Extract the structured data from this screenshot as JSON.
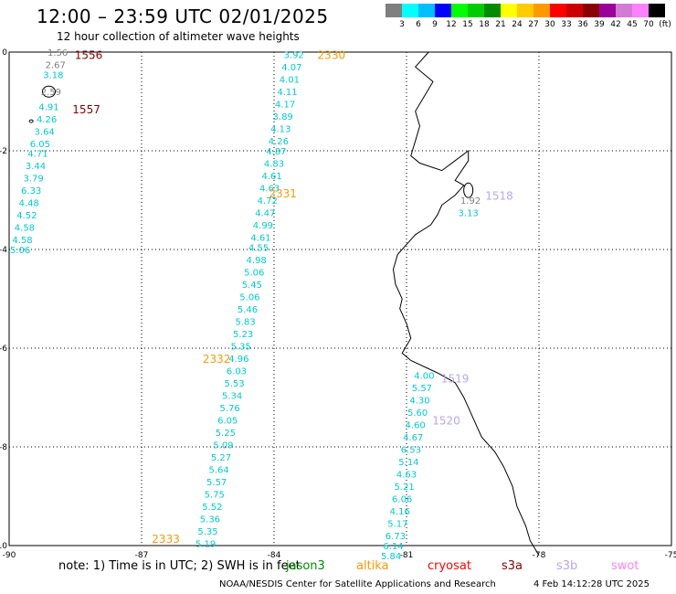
{
  "header": {
    "title": "12:00 – 23:59 UTC 02/01/2025",
    "subtitle": "12 hour collection of altimeter wave heights"
  },
  "scale": {
    "colors": [
      "#7f7f7f",
      "#00ffff",
      "#00bfff",
      "#0000ff",
      "#00ff00",
      "#00cc00",
      "#008c00",
      "#ffff00",
      "#ffcc00",
      "#ff9900",
      "#ff0000",
      "#cc0000",
      "#8b0000",
      "#9b009b",
      "#d27bd2",
      "#ff80ff",
      "#000000"
    ],
    "labels": [
      "3",
      "6",
      "9",
      "12",
      "15",
      "18",
      "21",
      "24",
      "27",
      "30",
      "33",
      "36",
      "39",
      "42",
      "45",
      "70",
      "(ft)"
    ]
  },
  "map": {
    "lat_range": [
      -10,
      0
    ],
    "lon_range": [
      -90,
      -75
    ],
    "lat_ticks": [
      "0",
      "-2",
      "-4",
      "-6",
      "-8",
      "-10"
    ],
    "lon_ticks": [
      "-90",
      "-87",
      "-84",
      "-81",
      "-78",
      "-75"
    ]
  },
  "passes": [
    {
      "id": "1556",
      "color": "#8b0000",
      "lat": -0.05,
      "lon": -88.2
    },
    {
      "id": "1557",
      "color": "#8b0000",
      "lat": -1.15,
      "lon": -88.25
    },
    {
      "id": "2330",
      "color": "#ff9900",
      "lat": -0.05,
      "lon": -82.7
    },
    {
      "id": "2331",
      "color": "#ff9900",
      "lat": -2.85,
      "lon": -83.8
    },
    {
      "id": "2332",
      "color": "#ff9900",
      "lat": -6.2,
      "lon": -85.3
    },
    {
      "id": "2333",
      "color": "#ff9900",
      "lat": -9.85,
      "lon": -86.45
    },
    {
      "id": "1518",
      "color": "#b8a8ee",
      "lat": -2.9,
      "lon": -78.9
    },
    {
      "id": "1519",
      "color": "#b8a8ee",
      "lat": -6.6,
      "lon": -79.9
    },
    {
      "id": "1520",
      "color": "#b8a8ee",
      "lat": -7.45,
      "lon": -80.1
    }
  ],
  "tracks": [
    {
      "name": "west-track",
      "points": [
        {
          "lat": -0.0,
          "lon": -88.9,
          "v": "1.56",
          "c": "#7f7f7f"
        },
        {
          "lat": -0.25,
          "lon": -88.95,
          "v": "2.67",
          "c": "#7f7f7f"
        },
        {
          "lat": -0.45,
          "lon": -89.0,
          "v": "3.18",
          "c": "#00cccc"
        },
        {
          "lat": -0.8,
          "lon": -89.05,
          "v": "2.59",
          "c": "#7f7f7f"
        },
        {
          "lat": -1.1,
          "lon": -89.1,
          "v": "4.91",
          "c": "#00cccc"
        },
        {
          "lat": -1.35,
          "lon": -89.15,
          "v": "4.26",
          "c": "#00cccc"
        },
        {
          "lat": -1.6,
          "lon": -89.2,
          "v": "3.64",
          "c": "#00cccc"
        },
        {
          "lat": -1.85,
          "lon": -89.3,
          "v": "6.05",
          "c": "#00cccc"
        },
        {
          "lat": -2.05,
          "lon": -89.35,
          "v": "4.71",
          "c": "#00cccc"
        },
        {
          "lat": -2.3,
          "lon": -89.4,
          "v": "3.44",
          "c": "#00cccc"
        },
        {
          "lat": -2.55,
          "lon": -89.45,
          "v": "3.79",
          "c": "#00cccc"
        },
        {
          "lat": -2.8,
          "lon": -89.5,
          "v": "6.33",
          "c": "#00cccc"
        },
        {
          "lat": -3.05,
          "lon": -89.55,
          "v": "4.48",
          "c": "#00cccc"
        },
        {
          "lat": -3.3,
          "lon": -89.6,
          "v": "4.52",
          "c": "#00cccc"
        },
        {
          "lat": -3.55,
          "lon": -89.65,
          "v": "4.58",
          "c": "#00cccc"
        },
        {
          "lat": -3.8,
          "lon": -89.7,
          "v": "4.58",
          "c": "#00cccc"
        },
        {
          "lat": -4.0,
          "lon": -89.75,
          "v": "5.06",
          "c": "#00cccc"
        }
      ]
    },
    {
      "name": "middle-track",
      "points": [
        {
          "lat": -0.05,
          "lon": -83.55,
          "v": "3.92",
          "c": "#00cccc"
        },
        {
          "lat": -0.3,
          "lon": -83.6,
          "v": "4.07",
          "c": "#00cccc"
        },
        {
          "lat": -0.55,
          "lon": -83.65,
          "v": "4.01",
          "c": "#00cccc"
        },
        {
          "lat": -0.8,
          "lon": -83.7,
          "v": "4.11",
          "c": "#00cccc"
        },
        {
          "lat": -1.05,
          "lon": -83.75,
          "v": "4.17",
          "c": "#00cccc"
        },
        {
          "lat": -1.3,
          "lon": -83.8,
          "v": "3.89",
          "c": "#00cccc"
        },
        {
          "lat": -1.55,
          "lon": -83.85,
          "v": "4.13",
          "c": "#00cccc"
        },
        {
          "lat": -1.8,
          "lon": -83.9,
          "v": "4.26",
          "c": "#00cccc"
        },
        {
          "lat": -2.0,
          "lon": -83.95,
          "v": "4.87",
          "c": "#00cccc"
        },
        {
          "lat": -2.25,
          "lon": -84.0,
          "v": "4.83",
          "c": "#00cccc"
        },
        {
          "lat": -2.5,
          "lon": -84.05,
          "v": "4.61",
          "c": "#00cccc"
        },
        {
          "lat": -2.75,
          "lon": -84.1,
          "v": "4.63",
          "c": "#00cccc"
        },
        {
          "lat": -3.0,
          "lon": -84.15,
          "v": "4.72",
          "c": "#00cccc"
        },
        {
          "lat": -3.25,
          "lon": -84.2,
          "v": "4.47",
          "c": "#00cccc"
        },
        {
          "lat": -3.5,
          "lon": -84.25,
          "v": "4.99",
          "c": "#00cccc"
        },
        {
          "lat": -3.75,
          "lon": -84.3,
          "v": "4.61",
          "c": "#00cccc"
        },
        {
          "lat": -3.95,
          "lon": -84.35,
          "v": "4.55",
          "c": "#00cccc"
        },
        {
          "lat": -4.2,
          "lon": -84.4,
          "v": "4.98",
          "c": "#00cccc"
        },
        {
          "lat": -4.45,
          "lon": -84.45,
          "v": "5.06",
          "c": "#00cccc"
        },
        {
          "lat": -4.7,
          "lon": -84.5,
          "v": "5.45",
          "c": "#00cccc"
        },
        {
          "lat": -4.95,
          "lon": -84.55,
          "v": "5.06",
          "c": "#00cccc"
        },
        {
          "lat": -5.2,
          "lon": -84.6,
          "v": "5.46",
          "c": "#00cccc"
        },
        {
          "lat": -5.45,
          "lon": -84.65,
          "v": "5.83",
          "c": "#00cccc"
        },
        {
          "lat": -5.7,
          "lon": -84.7,
          "v": "5.23",
          "c": "#00cccc"
        },
        {
          "lat": -5.95,
          "lon": -84.75,
          "v": "5.35",
          "c": "#00cccc"
        },
        {
          "lat": -6.2,
          "lon": -84.8,
          "v": "4.96",
          "c": "#00cccc"
        },
        {
          "lat": -6.45,
          "lon": -84.85,
          "v": "6.03",
          "c": "#00cccc"
        },
        {
          "lat": -6.7,
          "lon": -84.9,
          "v": "5.53",
          "c": "#00cccc"
        },
        {
          "lat": -6.95,
          "lon": -84.95,
          "v": "5.34",
          "c": "#00cccc"
        },
        {
          "lat": -7.2,
          "lon": -85.0,
          "v": "5.76",
          "c": "#00cccc"
        },
        {
          "lat": -7.45,
          "lon": -85.05,
          "v": "6.05",
          "c": "#00cccc"
        },
        {
          "lat": -7.7,
          "lon": -85.1,
          "v": "5.25",
          "c": "#00cccc"
        },
        {
          "lat": -7.95,
          "lon": -85.15,
          "v": "5.09",
          "c": "#00cccc"
        },
        {
          "lat": -8.2,
          "lon": -85.2,
          "v": "5.27",
          "c": "#00cccc"
        },
        {
          "lat": -8.45,
          "lon": -85.25,
          "v": "5.64",
          "c": "#00cccc"
        },
        {
          "lat": -8.7,
          "lon": -85.3,
          "v": "5.57",
          "c": "#00cccc"
        },
        {
          "lat": -8.95,
          "lon": -85.35,
          "v": "5.75",
          "c": "#00cccc"
        },
        {
          "lat": -9.2,
          "lon": -85.4,
          "v": "5.52",
          "c": "#00cccc"
        },
        {
          "lat": -9.45,
          "lon": -85.45,
          "v": "5.36",
          "c": "#00cccc"
        },
        {
          "lat": -9.7,
          "lon": -85.5,
          "v": "5.35",
          "c": "#00cccc"
        },
        {
          "lat": -9.95,
          "lon": -85.55,
          "v": "5.19",
          "c": "#00cccc"
        }
      ]
    },
    {
      "name": "coastal-track-north",
      "points": [
        {
          "lat": -3.0,
          "lon": -79.55,
          "v": "1.92",
          "c": "#7f7f7f"
        },
        {
          "lat": -3.25,
          "lon": -79.6,
          "v": "3.13",
          "c": "#00cccc"
        }
      ]
    },
    {
      "name": "east-track",
      "points": [
        {
          "lat": -6.55,
          "lon": -80.6,
          "v": "4.00",
          "c": "#00cccc"
        },
        {
          "lat": -6.8,
          "lon": -80.65,
          "v": "5.57",
          "c": "#00cccc"
        },
        {
          "lat": -7.05,
          "lon": -80.7,
          "v": "4.30",
          "c": "#00cccc"
        },
        {
          "lat": -7.3,
          "lon": -80.75,
          "v": "5.60",
          "c": "#00cccc"
        },
        {
          "lat": -7.55,
          "lon": -80.8,
          "v": "4.60",
          "c": "#00cccc"
        },
        {
          "lat": -7.8,
          "lon": -80.85,
          "v": "4.67",
          "c": "#00cccc"
        },
        {
          "lat": -8.05,
          "lon": -80.9,
          "v": "6.53",
          "c": "#00cccc"
        },
        {
          "lat": -8.3,
          "lon": -80.95,
          "v": "5.14",
          "c": "#00cccc"
        },
        {
          "lat": -8.55,
          "lon": -81.0,
          "v": "4.63",
          "c": "#00cccc"
        },
        {
          "lat": -8.8,
          "lon": -81.05,
          "v": "5.21",
          "c": "#00cccc"
        },
        {
          "lat": -9.05,
          "lon": -81.1,
          "v": "6.06",
          "c": "#00cccc"
        },
        {
          "lat": -9.3,
          "lon": -81.15,
          "v": "4.16",
          "c": "#00cccc"
        },
        {
          "lat": -9.55,
          "lon": -81.2,
          "v": "5.17",
          "c": "#00cccc"
        },
        {
          "lat": -9.8,
          "lon": -81.25,
          "v": "6.73",
          "c": "#00cccc"
        },
        {
          "lat": -10.0,
          "lon": -81.3,
          "v": "6.14",
          "c": "#00cccc"
        },
        {
          "lat": -10.2,
          "lon": -81.35,
          "v": "5.84",
          "c": "#00cccc"
        }
      ]
    }
  ],
  "coast": [
    [
      -0.0,
      -80.5
    ],
    [
      -0.3,
      -80.8
    ],
    [
      -0.6,
      -80.4
    ],
    [
      -0.9,
      -80.6
    ],
    [
      -1.2,
      -80.8
    ],
    [
      -1.5,
      -80.7
    ],
    [
      -1.8,
      -80.8
    ],
    [
      -2.1,
      -80.9
    ],
    [
      -2.25,
      -80.7
    ],
    [
      -2.4,
      -80.2
    ],
    [
      -2.2,
      -79.9
    ],
    [
      -2.0,
      -79.6
    ],
    [
      -2.2,
      -79.6
    ],
    [
      -2.6,
      -79.9
    ],
    [
      -2.7,
      -79.7
    ],
    [
      -2.9,
      -79.9
    ],
    [
      -3.1,
      -80.2
    ],
    [
      -3.3,
      -80.3
    ],
    [
      -3.5,
      -80.45
    ],
    [
      -3.7,
      -80.8
    ],
    [
      -3.9,
      -81.0
    ],
    [
      -4.1,
      -81.2
    ],
    [
      -4.4,
      -81.3
    ],
    [
      -4.7,
      -81.25
    ],
    [
      -5.0,
      -81.1
    ],
    [
      -5.2,
      -81.15
    ],
    [
      -5.5,
      -81.0
    ],
    [
      -5.8,
      -80.9
    ],
    [
      -6.1,
      -81.1
    ],
    [
      -6.25,
      -80.9
    ],
    [
      -6.5,
      -80.3
    ],
    [
      -6.7,
      -79.9
    ],
    [
      -7.0,
      -79.7
    ],
    [
      -7.4,
      -79.5
    ],
    [
      -7.8,
      -79.3
    ],
    [
      -8.1,
      -79.0
    ],
    [
      -8.4,
      -78.8
    ],
    [
      -8.8,
      -78.6
    ],
    [
      -9.2,
      -78.5
    ],
    [
      -9.6,
      -78.3
    ],
    [
      -9.9,
      -78.2
    ],
    [
      -10.2,
      -78.0
    ]
  ],
  "notes": {
    "note": "note:  1) Time is in UTC; 2) SWH is in feet",
    "jason3": "jason3",
    "altika": "altika",
    "cryosat": "cryosat",
    "s3a": "s3a",
    "s3b": "s3b",
    "swot": "swot",
    "credit": "NOAA/NESDIS Center for Satellite Applications and Research",
    "timestamp": "4 Feb 14:12:28 UTC 2025",
    "jason3_color": "#008c00",
    "altika_color": "#ff9900",
    "cryosat_color": "#ff0000",
    "s3a_color": "#8b0000",
    "s3b_color": "#b8a8ee",
    "swot_color": "#ff80ff"
  }
}
